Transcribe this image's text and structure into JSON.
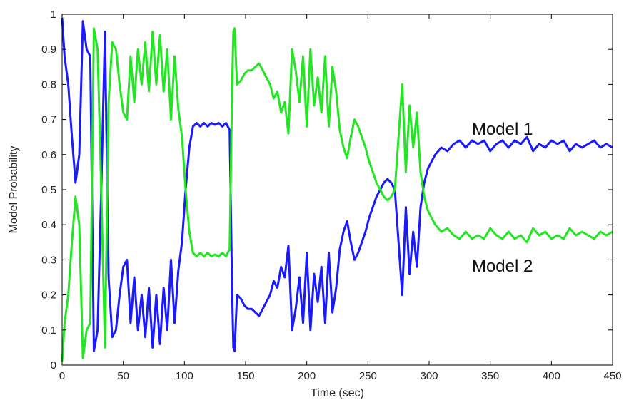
{
  "chart_data": {
    "type": "line",
    "title": "",
    "xlabel": "Time (sec)",
    "ylabel": "Model Probability",
    "xlim": [
      0,
      450
    ],
    "ylim": [
      0,
      1
    ],
    "xticks": [
      "0",
      "50",
      "100",
      "150",
      "200",
      "250",
      "300",
      "350",
      "400",
      "450"
    ],
    "yticks": [
      "0",
      "0.1",
      "0.2",
      "0.3",
      "0.4",
      "0.5",
      "0.6",
      "0.7",
      "0.8",
      "0.9",
      "1"
    ],
    "grid": false,
    "legend": "none",
    "annotations": [
      {
        "text": "Model 1",
        "x": 335,
        "y": 0.675
      },
      {
        "text": "Model 2",
        "x": 335,
        "y": 0.285
      }
    ],
    "x": [
      0,
      2,
      5,
      8,
      11,
      14,
      17,
      20,
      23,
      26,
      29,
      32,
      35,
      38,
      41,
      44,
      47,
      50,
      53,
      56,
      59,
      62,
      65,
      68,
      71,
      74,
      77,
      80,
      83,
      86,
      89,
      92,
      95,
      98,
      101,
      104,
      107,
      110,
      113,
      116,
      119,
      122,
      125,
      128,
      131,
      134,
      137,
      139,
      140,
      141,
      143,
      146,
      149,
      152,
      155,
      158,
      161,
      164,
      167,
      170,
      173,
      176,
      179,
      182,
      185,
      188,
      191,
      194,
      197,
      200,
      203,
      206,
      209,
      212,
      215,
      218,
      221,
      224,
      227,
      230,
      233,
      236,
      239,
      242,
      245,
      248,
      251,
      254,
      257,
      260,
      263,
      266,
      269,
      272,
      275,
      278,
      281,
      284,
      287,
      290,
      293,
      296,
      299,
      302,
      305,
      310,
      315,
      320,
      325,
      330,
      335,
      340,
      345,
      350,
      355,
      360,
      365,
      370,
      375,
      380,
      385,
      390,
      395,
      400,
      405,
      410,
      415,
      420,
      425,
      430,
      435,
      440,
      445,
      450
    ],
    "series": [
      {
        "name": "Model 1",
        "color": "#1a1aff",
        "values": [
          0.99,
          0.88,
          0.8,
          0.65,
          0.52,
          0.6,
          0.98,
          0.9,
          0.88,
          0.04,
          0.1,
          0.5,
          0.95,
          0.25,
          0.08,
          0.1,
          0.2,
          0.28,
          0.3,
          0.12,
          0.25,
          0.1,
          0.2,
          0.08,
          0.22,
          0.05,
          0.2,
          0.06,
          0.22,
          0.1,
          0.3,
          0.12,
          0.27,
          0.35,
          0.5,
          0.62,
          0.68,
          0.69,
          0.68,
          0.69,
          0.68,
          0.69,
          0.685,
          0.69,
          0.68,
          0.69,
          0.67,
          0.2,
          0.05,
          0.04,
          0.2,
          0.19,
          0.17,
          0.16,
          0.16,
          0.15,
          0.14,
          0.16,
          0.18,
          0.2,
          0.24,
          0.22,
          0.28,
          0.25,
          0.34,
          0.1,
          0.16,
          0.25,
          0.12,
          0.32,
          0.1,
          0.26,
          0.18,
          0.28,
          0.12,
          0.32,
          0.15,
          0.22,
          0.33,
          0.38,
          0.41,
          0.35,
          0.3,
          0.32,
          0.35,
          0.38,
          0.42,
          0.45,
          0.48,
          0.5,
          0.52,
          0.53,
          0.52,
          0.5,
          0.35,
          0.2,
          0.45,
          0.26,
          0.38,
          0.28,
          0.45,
          0.52,
          0.56,
          0.58,
          0.6,
          0.62,
          0.61,
          0.63,
          0.64,
          0.62,
          0.64,
          0.63,
          0.64,
          0.61,
          0.63,
          0.64,
          0.62,
          0.64,
          0.63,
          0.65,
          0.61,
          0.63,
          0.62,
          0.64,
          0.63,
          0.64,
          0.61,
          0.63,
          0.62,
          0.63,
          0.64,
          0.62,
          0.63,
          0.62
        ]
      },
      {
        "name": "Model 2",
        "color": "#22e622",
        "values": [
          0.01,
          0.12,
          0.2,
          0.35,
          0.48,
          0.4,
          0.02,
          0.1,
          0.12,
          0.96,
          0.9,
          0.5,
          0.05,
          0.75,
          0.92,
          0.9,
          0.8,
          0.72,
          0.7,
          0.88,
          0.75,
          0.9,
          0.8,
          0.92,
          0.78,
          0.95,
          0.8,
          0.94,
          0.78,
          0.9,
          0.7,
          0.88,
          0.73,
          0.65,
          0.5,
          0.38,
          0.32,
          0.31,
          0.32,
          0.31,
          0.32,
          0.31,
          0.315,
          0.31,
          0.32,
          0.31,
          0.33,
          0.8,
          0.95,
          0.96,
          0.8,
          0.81,
          0.83,
          0.84,
          0.84,
          0.85,
          0.86,
          0.84,
          0.82,
          0.8,
          0.76,
          0.78,
          0.72,
          0.75,
          0.66,
          0.9,
          0.84,
          0.75,
          0.88,
          0.68,
          0.9,
          0.74,
          0.82,
          0.72,
          0.88,
          0.68,
          0.85,
          0.78,
          0.67,
          0.62,
          0.59,
          0.65,
          0.7,
          0.68,
          0.65,
          0.62,
          0.58,
          0.55,
          0.52,
          0.5,
          0.48,
          0.47,
          0.48,
          0.5,
          0.65,
          0.8,
          0.55,
          0.74,
          0.62,
          0.72,
          0.55,
          0.48,
          0.44,
          0.42,
          0.4,
          0.38,
          0.39,
          0.37,
          0.36,
          0.38,
          0.36,
          0.37,
          0.36,
          0.39,
          0.37,
          0.36,
          0.38,
          0.36,
          0.37,
          0.35,
          0.39,
          0.37,
          0.38,
          0.36,
          0.37,
          0.36,
          0.39,
          0.37,
          0.38,
          0.37,
          0.36,
          0.38,
          0.37,
          0.38
        ]
      }
    ]
  }
}
